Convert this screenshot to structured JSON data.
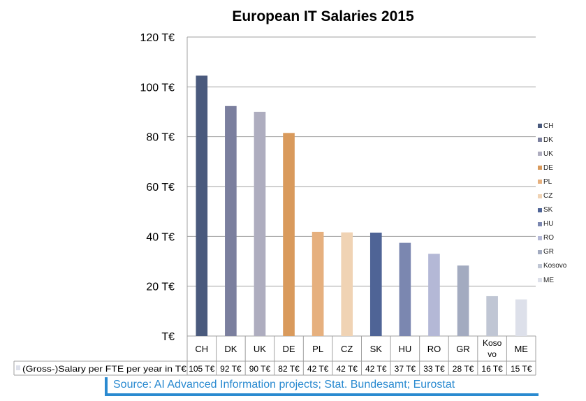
{
  "chart_data": {
    "type": "bar",
    "title": "European IT Salaries  2015",
    "categories": [
      "CH",
      "DK",
      "UK",
      "DE",
      "PL",
      "CZ",
      "SK",
      "HU",
      "RO",
      "GR",
      "Kosovo",
      "ME"
    ],
    "table_categories": [
      "CH",
      "DK",
      "UK",
      "DE",
      "PL",
      "CZ",
      "SK",
      "HU",
      "RO",
      "GR",
      "Koso vo",
      "ME"
    ],
    "values": [
      104.5,
      92.3,
      90,
      81.5,
      41.8,
      41.6,
      41.5,
      37.4,
      33,
      28.3,
      16,
      14.7
    ],
    "value_labels": [
      "105 T€",
      "92 T€",
      "90 T€",
      "82 T€",
      "42 T€",
      "42 T€",
      "42 T€",
      "37 T€",
      "33 T€",
      "28 T€",
      "16 T€",
      "15 T€"
    ],
    "colors": [
      "#4a5a7d",
      "#7b7f9e",
      "#aeadbf",
      "#d99a5c",
      "#e6b07e",
      "#f0d3b4",
      "#4f6496",
      "#7b87b0",
      "#b4b8d6",
      "#a3abc0",
      "#c0c6d4",
      "#dde0ea"
    ],
    "series_name": "(Gross-)Salary per FTE per year in T€",
    "yticks": [
      "T€",
      "20 T€",
      "40 T€",
      "60 T€",
      "80 T€",
      "100 T€",
      "120 T€"
    ],
    "ylim": [
      0,
      120
    ],
    "grid": true,
    "legend_placement": "right"
  },
  "source": "Source: AI Advanced Information projects; Stat. Bundesamt; Eurostat"
}
